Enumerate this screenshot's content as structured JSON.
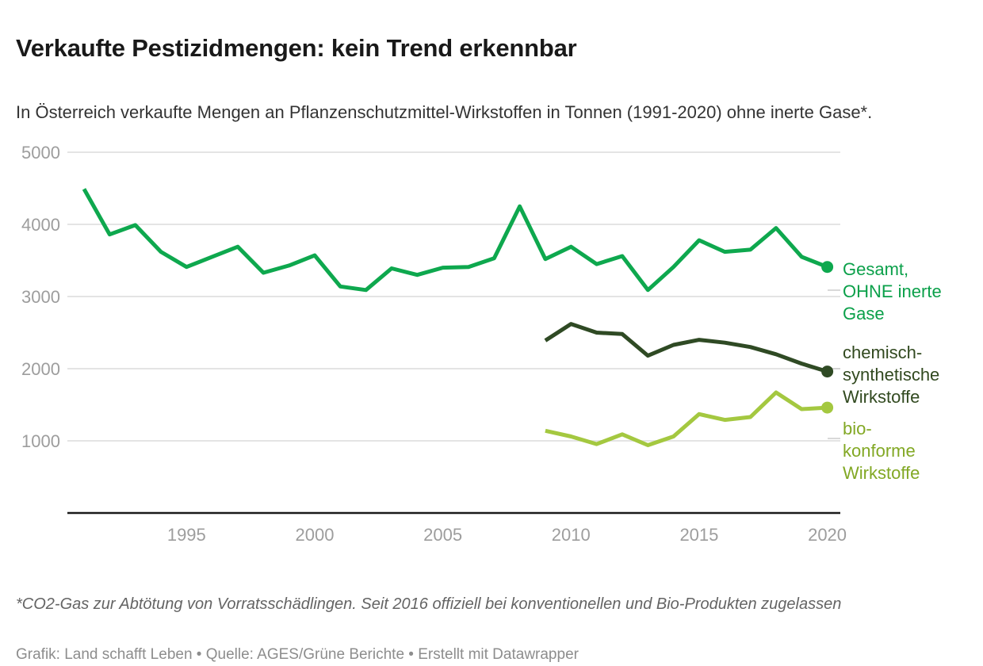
{
  "header": {
    "title": "Verkaufte Pestizidmengen: kein Trend erkennbar",
    "subtitle": "In Österreich verkaufte Mengen an Pflanzenschutzmittel-Wirkstoffen in Tonnen (1991-2020) ohne inerte Gase*."
  },
  "chart_data": {
    "type": "line",
    "unit": "Tonnen",
    "x": [
      1991,
      1992,
      1993,
      1994,
      1995,
      1996,
      1997,
      1998,
      1999,
      2000,
      2001,
      2002,
      2003,
      2004,
      2005,
      2006,
      2007,
      2008,
      2009,
      2010,
      2011,
      2012,
      2013,
      2014,
      2015,
      2016,
      2017,
      2018,
      2019,
      2020
    ],
    "xticks": [
      1995,
      2000,
      2005,
      2010,
      2015,
      2020
    ],
    "yticks": [
      1000,
      2000,
      3000,
      4000,
      5000
    ],
    "ylim": [
      0,
      5000
    ],
    "grid": true,
    "legend_position": "right",
    "series": [
      {
        "name": "Gesamt, OHNE inerte Gase",
        "color": "#0ea84e",
        "values": [
          4490,
          3860,
          3990,
          3620,
          3410,
          3550,
          3690,
          3330,
          3430,
          3570,
          3140,
          3090,
          3390,
          3300,
          3400,
          3410,
          3530,
          4250,
          3520,
          3690,
          3450,
          3560,
          3090,
          3410,
          3780,
          3620,
          3650,
          3950,
          3550,
          3410
        ]
      },
      {
        "name": "chemisch-synthetische Wirkstoffe",
        "color": "#2f4a24",
        "values": [
          null,
          null,
          null,
          null,
          null,
          null,
          null,
          null,
          null,
          null,
          null,
          null,
          null,
          null,
          null,
          null,
          null,
          null,
          2390,
          2620,
          2500,
          2480,
          2180,
          2330,
          2400,
          2360,
          2300,
          2200,
          2070,
          1960
        ]
      },
      {
        "name": "bio-konforme Wirkstoffe",
        "color": "#a4c840",
        "values": [
          null,
          null,
          null,
          null,
          null,
          null,
          null,
          null,
          null,
          null,
          null,
          null,
          null,
          null,
          null,
          null,
          null,
          null,
          1140,
          1060,
          955,
          1090,
          940,
          1060,
          1370,
          1290,
          1330,
          1670,
          1440,
          1460
        ]
      }
    ]
  },
  "legend": [
    {
      "label": "Gesamt,\nOHNE inerte\nGase",
      "color": "#0ba04a"
    },
    {
      "label": "chemisch-\nsynthetische\nWirkstoffe",
      "color": "#31491f"
    },
    {
      "label": "bio-\nkonforme\nWirkstoffe",
      "color": "#82a824"
    }
  ],
  "footer": {
    "footnote": "*CO2-Gas zur Abtötung von Vorratsschädlingen. Seit 2016 offiziell bei konventionellen und Bio-Produkten zugelassen",
    "credit": "Grafik: Land schafft Leben • Quelle: AGES/Grüne Berichte • Erstellt mit Datawrapper"
  }
}
